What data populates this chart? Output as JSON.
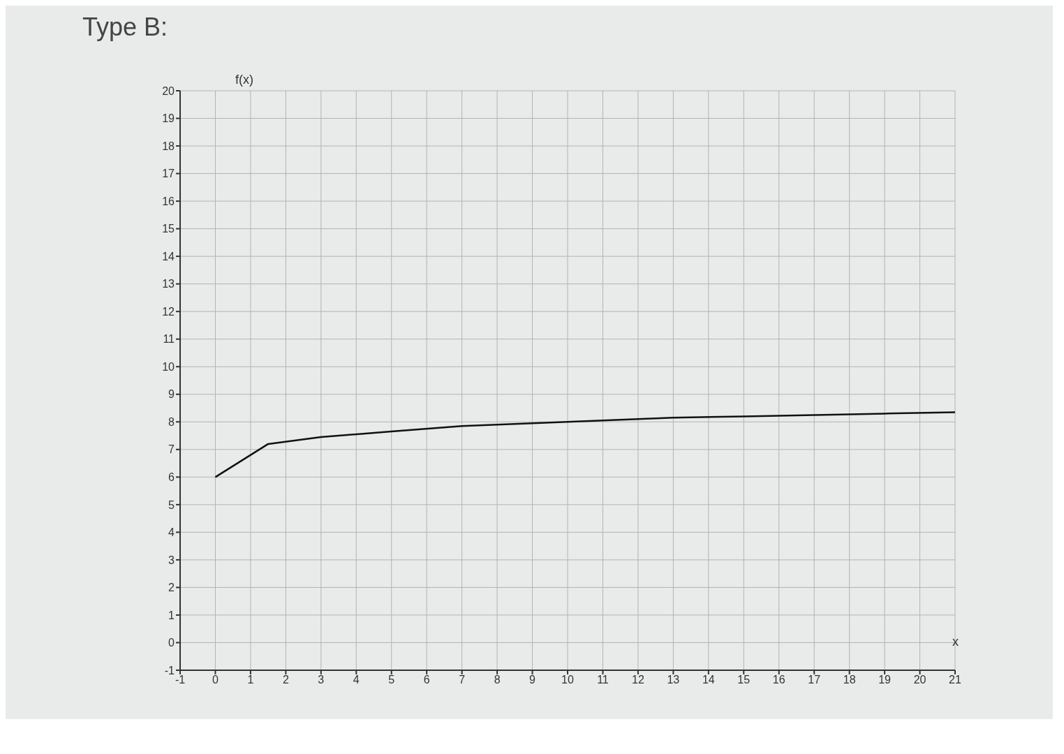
{
  "chart_data": {
    "type": "line",
    "title": "Type B:",
    "xlabel": "x",
    "ylabel": "f(x)",
    "x": [
      0,
      1.5,
      3,
      5,
      7,
      9,
      11,
      13,
      15,
      17,
      19,
      21
    ],
    "series": [
      {
        "color": "#111111",
        "values": [
          6,
          7.2,
          7.45,
          7.65,
          7.85,
          7.95,
          8.05,
          8.15,
          8.2,
          8.25,
          8.3,
          8.35
        ]
      }
    ],
    "xlim": [
      -1,
      21
    ],
    "xticks": [
      -1,
      0,
      1,
      2,
      3,
      4,
      5,
      6,
      7,
      8,
      9,
      10,
      11,
      12,
      13,
      14,
      15,
      16,
      17,
      18,
      19,
      20,
      21
    ],
    "ylim": [
      -1,
      20
    ],
    "yticks": [
      -1,
      0,
      1,
      2,
      3,
      4,
      5,
      6,
      7,
      8,
      9,
      10,
      11,
      12,
      13,
      14,
      15,
      16,
      17,
      18,
      19,
      20
    ],
    "grid": true,
    "marker": "none",
    "line_style": "solid"
  }
}
